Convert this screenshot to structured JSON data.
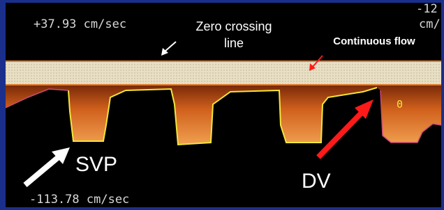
{
  "labels": {
    "top_velocity": "+37.93 cm/sec",
    "bottom_velocity": "-113.78 cm/sec",
    "corner_top": "-12",
    "corner_unit": "cm/",
    "marker": "0"
  },
  "annotations": {
    "zero_crossing": [
      "Zero crossing",
      "line"
    ],
    "continuous_flow": "Continuous flow",
    "svp": "SVP",
    "dv": "DV"
  }
}
